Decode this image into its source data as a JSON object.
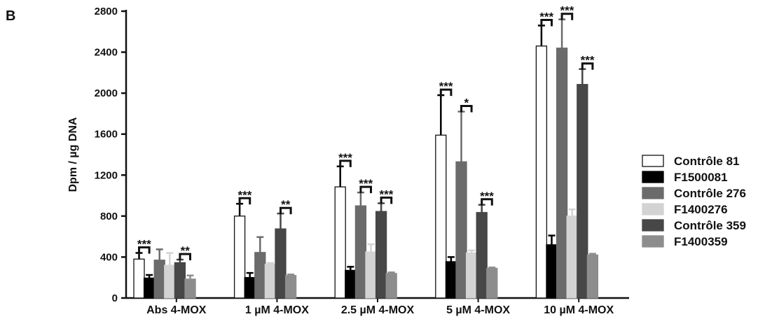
{
  "panel_label": "B",
  "chart_data": {
    "type": "bar",
    "ylabel": "Dpm / µg DNA",
    "xlabel": "",
    "ylim": [
      0,
      2800
    ],
    "yticks": [
      0,
      400,
      800,
      1200,
      1600,
      2000,
      2400,
      2800
    ],
    "grid": false,
    "legend_position": "right",
    "categories": [
      "Abs 4-MOX",
      "1 µM 4-MOX",
      "2.5 µM 4-MOX",
      "5 µM 4-MOX",
      "10 µM 4-MOX"
    ],
    "series": [
      {
        "name": "Contrôle 81",
        "color": "#ffffff",
        "values": [
          380,
          800,
          1085,
          1590,
          2460
        ],
        "errors": [
          60,
          120,
          200,
          390,
          200
        ]
      },
      {
        "name": "F1500081",
        "color": "#000000",
        "values": [
          195,
          200,
          270,
          355,
          520
        ],
        "errors": [
          30,
          45,
          35,
          45,
          90
        ]
      },
      {
        "name": "Contrôle 276",
        "color": "#6b6b6b",
        "values": [
          370,
          445,
          900,
          1330,
          2440
        ],
        "errors": [
          105,
          150,
          130,
          490,
          280
        ]
      },
      {
        "name": "F1400276",
        "color": "#d3d3d3",
        "values": [
          320,
          330,
          450,
          440,
          800
        ],
        "errors": [
          120,
          12,
          75,
          25,
          65
        ]
      },
      {
        "name": "Contrôle 359",
        "color": "#474747",
        "values": [
          345,
          675,
          845,
          835,
          2085
        ],
        "errors": [
          30,
          150,
          80,
          75,
          150
        ]
      },
      {
        "name": "F1400359",
        "color": "#8d8d8d",
        "values": [
          185,
          220,
          240,
          290,
          420
        ],
        "errors": [
          35,
          10,
          10,
          8,
          12
        ]
      }
    ],
    "significance": [
      {
        "category": 0,
        "from_series": 0,
        "to_series": 1,
        "label": "***"
      },
      {
        "category": 0,
        "from_series": 4,
        "to_series": 5,
        "label": "**"
      },
      {
        "category": 1,
        "from_series": 0,
        "to_series": 1,
        "label": "***"
      },
      {
        "category": 1,
        "from_series": 4,
        "to_series": 5,
        "label": "**"
      },
      {
        "category": 2,
        "from_series": 0,
        "to_series": 1,
        "label": "***"
      },
      {
        "category": 2,
        "from_series": 2,
        "to_series": 3,
        "label": "***"
      },
      {
        "category": 2,
        "from_series": 4,
        "to_series": 5,
        "label": "***"
      },
      {
        "category": 3,
        "from_series": 0,
        "to_series": 1,
        "label": "***"
      },
      {
        "category": 3,
        "from_series": 2,
        "to_series": 3,
        "label": "*"
      },
      {
        "category": 3,
        "from_series": 4,
        "to_series": 5,
        "label": "***"
      },
      {
        "category": 4,
        "from_series": 0,
        "to_series": 1,
        "label": "***"
      },
      {
        "category": 4,
        "from_series": 2,
        "to_series": 3,
        "label": "***"
      },
      {
        "category": 4,
        "from_series": 4,
        "to_series": 5,
        "label": "***"
      }
    ]
  }
}
